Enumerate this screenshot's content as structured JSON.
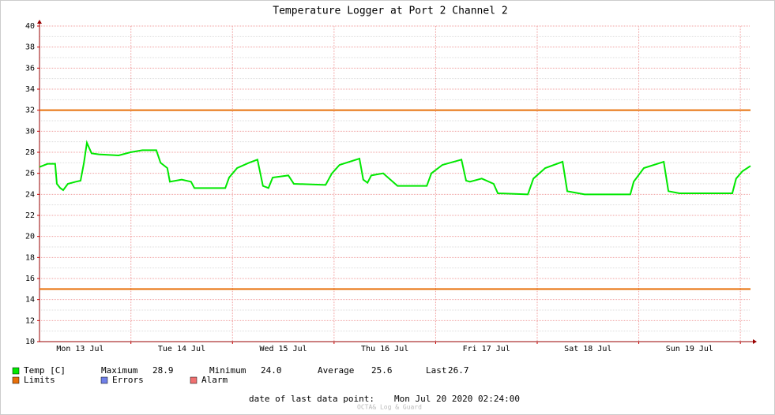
{
  "chart_data": {
    "type": "line",
    "title": "Temperature Logger at Port 2 Channel 2",
    "series": [
      {
        "name": "Temp [C]",
        "color": "#00e800",
        "x": [
          0,
          1.9,
          3.7,
          4.1,
          4.9,
          5.6,
          6.7,
          8.6,
          9.7,
          10.5,
          11.2,
          12.3,
          14.0,
          18.7,
          21.5,
          24.3,
          27.6,
          28.6,
          30.2,
          30.8,
          33.6,
          35.8,
          36.6,
          43.9,
          44.8,
          46.7,
          49.5,
          51.5,
          52.8,
          54.1,
          55.1,
          58.8,
          60.1,
          67.6,
          69.1,
          70.9,
          75.6,
          76.5,
          77.5,
          78.4,
          81.2,
          84.6,
          91.5,
          92.6,
          95.2,
          99.7,
          100.8,
          101.7,
          104.5,
          107.3,
          108.3,
          115.4,
          116.7,
          119.5,
          123.6,
          124.7,
          128.8,
          139.6,
          140.4,
          142.8,
          147.5,
          148.6,
          151.2,
          163.7,
          164.6,
          166.1,
          168
        ],
        "values": [
          26.6,
          26.9,
          26.9,
          25.0,
          24.6,
          24.4,
          25.0,
          25.2,
          25.3,
          27.0,
          28.9,
          27.9,
          27.8,
          27.7,
          28.0,
          28.2,
          28.2,
          27.0,
          26.5,
          25.2,
          25.4,
          25.2,
          24.6,
          24.6,
          25.6,
          26.5,
          27.0,
          27.3,
          24.8,
          24.6,
          25.6,
          25.8,
          25.0,
          24.9,
          26.0,
          26.8,
          27.4,
          25.4,
          25.1,
          25.8,
          26.0,
          24.8,
          24.8,
          26.0,
          26.8,
          27.3,
          25.3,
          25.2,
          25.5,
          25.0,
          24.1,
          24.0,
          25.5,
          26.5,
          27.1,
          24.3,
          24.0,
          24.0,
          25.2,
          26.5,
          27.1,
          24.3,
          24.1,
          24.1,
          25.5,
          26.2,
          26.7
        ]
      }
    ],
    "limits": {
      "name": "Limits",
      "color": "#e8700a",
      "values": [
        32,
        15
      ]
    },
    "legend_extra": [
      {
        "name": "Errors",
        "color": "#7080e8"
      },
      {
        "name": "Alarm",
        "color": "#f07070"
      }
    ],
    "stats": [
      {
        "label": "Maximum",
        "value": 28.9
      },
      {
        "label": "Minimum",
        "value": 24,
        "value_label": "24.0"
      },
      {
        "label": "Average",
        "value": 25.6
      },
      {
        "label": "Last",
        "value": 26.7
      }
    ],
    "xlim": [
      0,
      168
    ],
    "xticks": [
      {
        "value": 9.6,
        "label": "Mon 13 Jul"
      },
      {
        "value": 33.6,
        "label": "Tue 14 Jul"
      },
      {
        "value": 57.6,
        "label": "Wed 15 Jul"
      },
      {
        "value": 81.6,
        "label": "Thu 16 Jul"
      },
      {
        "value": 105.6,
        "label": "Fri 17 Jul"
      },
      {
        "value": 129.6,
        "label": "Sat 18 Jul"
      },
      {
        "value": 153.6,
        "label": "Sun 19 Jul"
      }
    ],
    "x_major_grid": [
      21.6,
      45.6,
      69.6,
      93.6,
      117.6,
      141.6,
      165.6
    ],
    "ylim": [
      10,
      40
    ],
    "yticks": [
      10,
      12,
      14,
      16,
      18,
      20,
      22,
      24,
      26,
      28,
      30,
      32,
      34,
      36,
      38,
      40
    ],
    "grid": true,
    "footer_label": "date of last data point:",
    "footer_date": "Mon Jul 20 2020 02:24:00",
    "watermark": "OCTA& Log & Guard"
  }
}
